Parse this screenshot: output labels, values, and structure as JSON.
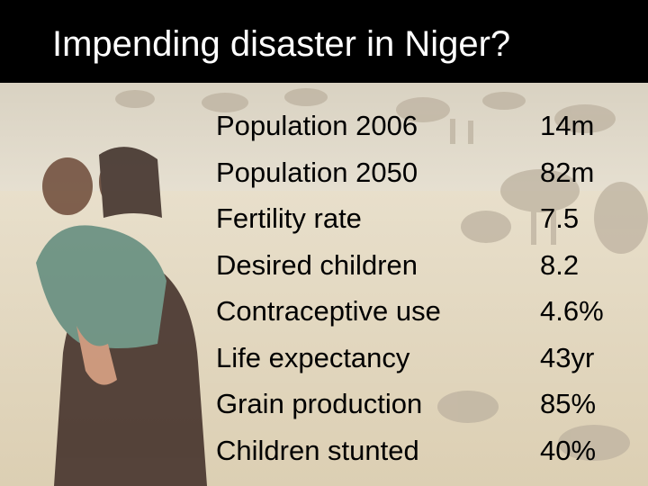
{
  "slide": {
    "title": "Impending disaster in Niger?",
    "stats": [
      {
        "label": "Population 2006",
        "value": "14m"
      },
      {
        "label": "Population 2050",
        "value": "82m"
      },
      {
        "label": "Fertility rate",
        "value": "7.5"
      },
      {
        "label": "Desired children",
        "value": "8.2"
      },
      {
        "label": "Contraceptive use",
        "value": "4.6%"
      },
      {
        "label": "Life expectancy",
        "value": "43yr"
      },
      {
        "label": "Grain production",
        "value": "85%"
      },
      {
        "label": "Children stunted",
        "value": "40%"
      }
    ]
  }
}
